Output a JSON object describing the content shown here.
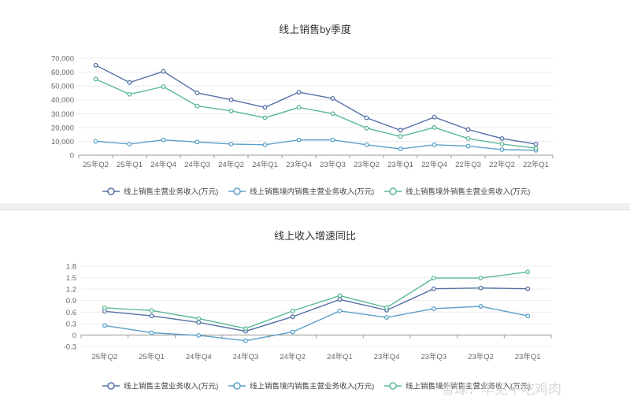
{
  "watermark": "雪球：早见不吃鸡肉",
  "chart_data": [
    {
      "type": "line",
      "title": "线上销售by季度",
      "categories": [
        "25年Q2",
        "25年Q1",
        "24年Q4",
        "24年Q3",
        "24年Q2",
        "24年Q1",
        "23年Q4",
        "23年Q3",
        "23年Q2",
        "23年Q1",
        "22年Q4",
        "22年Q3",
        "22年Q2",
        "22年Q1"
      ],
      "y_ticks": [
        "70,000",
        "60,000",
        "50,000",
        "40,000",
        "30,000",
        "20,000",
        "10,000",
        "0"
      ],
      "ylim": [
        0,
        70000
      ],
      "grid": true,
      "legend_position": "bottom",
      "series": [
        {
          "name": "线上销售主营业务收入(万元)",
          "color": "#5470a6",
          "values": [
            65000,
            52500,
            60500,
            45000,
            40000,
            34500,
            45500,
            41000,
            27000,
            18000,
            27500,
            18500,
            12000,
            8000
          ]
        },
        {
          "name": "线上销售境内销售主营业务收入(万元)",
          "color": "#5ba0c8",
          "values": [
            10000,
            8000,
            11000,
            9500,
            8000,
            7500,
            11000,
            11000,
            7500,
            4500,
            7500,
            6500,
            4000,
            3500
          ]
        },
        {
          "name": "线上销售境外销售主营业务收入(万元)",
          "color": "#5cb89a",
          "values": [
            55000,
            44000,
            49500,
            35500,
            32000,
            27000,
            34500,
            30000,
            19500,
            13500,
            20000,
            12000,
            8000,
            5000
          ]
        }
      ]
    },
    {
      "type": "line",
      "title": "线上收入增速同比",
      "categories": [
        "25年Q2",
        "25年Q1",
        "24年Q4",
        "24年Q3",
        "24年Q2",
        "24年Q1",
        "23年Q4",
        "23年Q3",
        "23年Q2",
        "23年Q1"
      ],
      "y_ticks": [
        "1.8",
        "1.5",
        "1.2",
        "0.9",
        "0.6",
        "0.3",
        "0",
        "-0.3"
      ],
      "ylim": [
        -0.3,
        1.8
      ],
      "grid": true,
      "legend_position": "bottom",
      "series": [
        {
          "name": "线上销售主营业务收入(万元)",
          "color": "#5470a6",
          "values": [
            0.62,
            0.5,
            0.33,
            0.1,
            0.48,
            0.93,
            0.65,
            1.21,
            1.23,
            1.21
          ]
        },
        {
          "name": "线上销售境内销售主营业务收入(万元)",
          "color": "#5ba0c8",
          "values": [
            0.25,
            0.06,
            -0.01,
            -0.15,
            0.08,
            0.63,
            0.46,
            0.69,
            0.75,
            0.5
          ]
        },
        {
          "name": "线上销售境外销售主营业务收入(万元)",
          "color": "#5cb89a",
          "values": [
            0.71,
            0.64,
            0.43,
            0.17,
            0.63,
            1.03,
            0.72,
            1.49,
            1.49,
            1.65
          ]
        }
      ]
    }
  ]
}
